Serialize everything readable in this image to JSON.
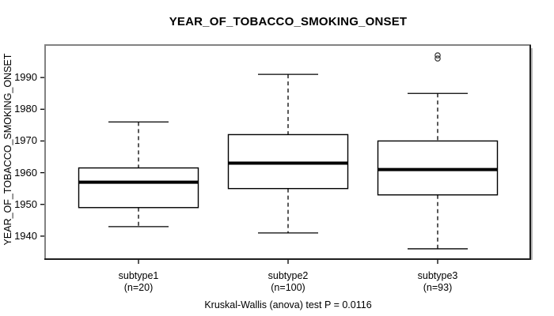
{
  "figure": {
    "title": "YEAR_OF_TOBACCO_SMOKING_ONSET",
    "caption": "Kruskal-Wallis (anova) test P = 0.0116"
  },
  "chart_data": {
    "type": "boxplot",
    "title": "YEAR_OF_TOBACCO_SMOKING_ONSET",
    "ylabel": "YEAR_OF_TOBACCO_SMOKING_ONSET",
    "xlabel": "",
    "ylim": [
      1933,
      2000
    ],
    "yticks": [
      1940,
      1950,
      1960,
      1970,
      1980,
      1990
    ],
    "grid": false,
    "legend": null,
    "categories": [
      "subtype1",
      "subtype2",
      "subtype3"
    ],
    "category_counts": [
      "(n=20)",
      "(n=100)",
      "(n=93)"
    ],
    "series": [
      {
        "name": "subtype1",
        "n": 20,
        "whisker_low": 1943,
        "q1": 1949,
        "median": 1957,
        "q3": 1961.5,
        "whisker_high": 1976,
        "outliers": []
      },
      {
        "name": "subtype2",
        "n": 100,
        "whisker_low": 1941,
        "q1": 1955,
        "median": 1963,
        "q3": 1972,
        "whisker_high": 1991,
        "outliers": []
      },
      {
        "name": "subtype3",
        "n": 93,
        "whisker_low": 1936,
        "q1": 1953,
        "median": 1961,
        "q3": 1970,
        "whisker_high": 1985,
        "outliers": [
          1996,
          1997
        ]
      }
    ],
    "annotation": "Kruskal-Wallis (anova) test P = 0.0116"
  },
  "colors": {
    "background": "#ffffff",
    "line": "#000000",
    "box_fill": "#ffffff",
    "outlier_stroke": "#333333",
    "frame_light": "#828282",
    "frame_dark": "#1e1e1e",
    "frame_shadow": "#b6b6b6",
    "text": "#000000"
  }
}
